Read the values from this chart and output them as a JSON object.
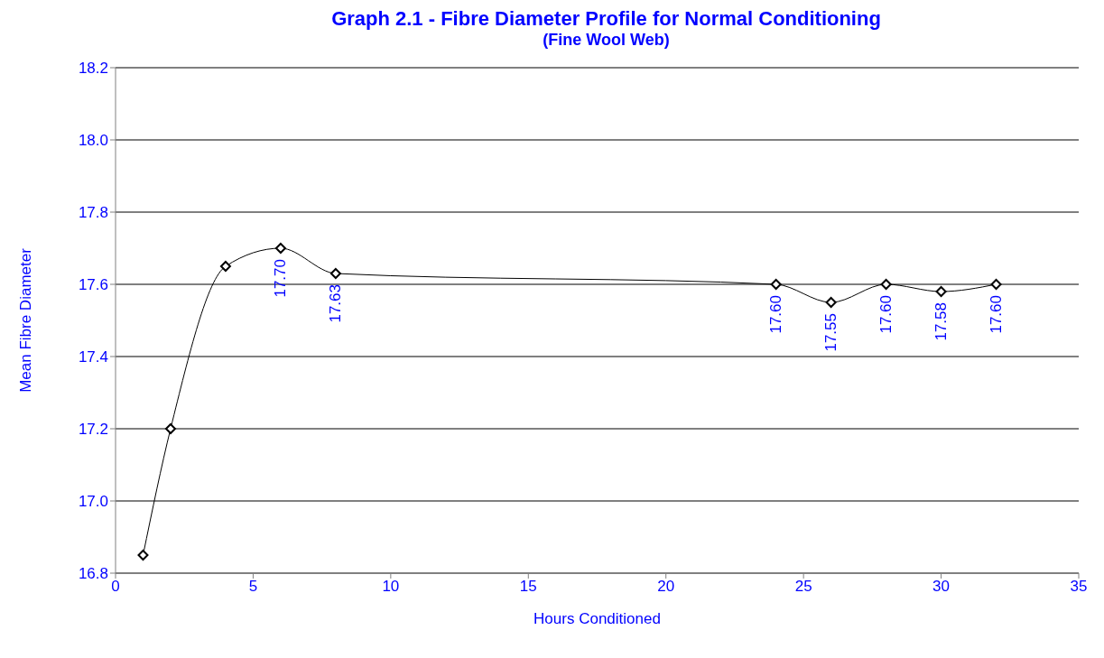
{
  "chart_data": {
    "type": "line",
    "title": "Graph 2.1 - Fibre Diameter Profile for Normal Conditioning",
    "subtitle": "(Fine Wool Web)",
    "xlabel": "Hours Conditioned",
    "ylabel": "Mean Fibre Diameter",
    "x": [
      1,
      2,
      4,
      6,
      8,
      24,
      26,
      28,
      30,
      32
    ],
    "series": [
      {
        "color": "#000000",
        "values": [
          16.85,
          17.2,
          17.65,
          17.7,
          17.63,
          17.6,
          17.55,
          17.6,
          17.58,
          17.6
        ],
        "value_labels": [
          null,
          null,
          null,
          "17.70",
          "17.63",
          "17.60",
          "17.55",
          "17.60",
          "17.58",
          "17.60"
        ]
      }
    ],
    "xlim": [
      0,
      35
    ],
    "xticks": [
      0,
      5,
      10,
      15,
      20,
      25,
      30,
      35
    ],
    "ylim": [
      16.8,
      18.2
    ],
    "yticks": [
      {
        "value": 16.8,
        "label": "16.8"
      },
      {
        "value": 17,
        "label": "17.0"
      },
      {
        "value": 17.2,
        "label": "17.2"
      },
      {
        "value": 17.4,
        "label": "17.4"
      },
      {
        "value": 17.6,
        "label": "17.6"
      },
      {
        "value": 17.8,
        "label": "17.8"
      },
      {
        "value": 18,
        "label": "18.0"
      },
      {
        "value": 18.2,
        "label": "18.2"
      }
    ],
    "grid": "y",
    "marker": "diamond",
    "line_style": "solid"
  }
}
